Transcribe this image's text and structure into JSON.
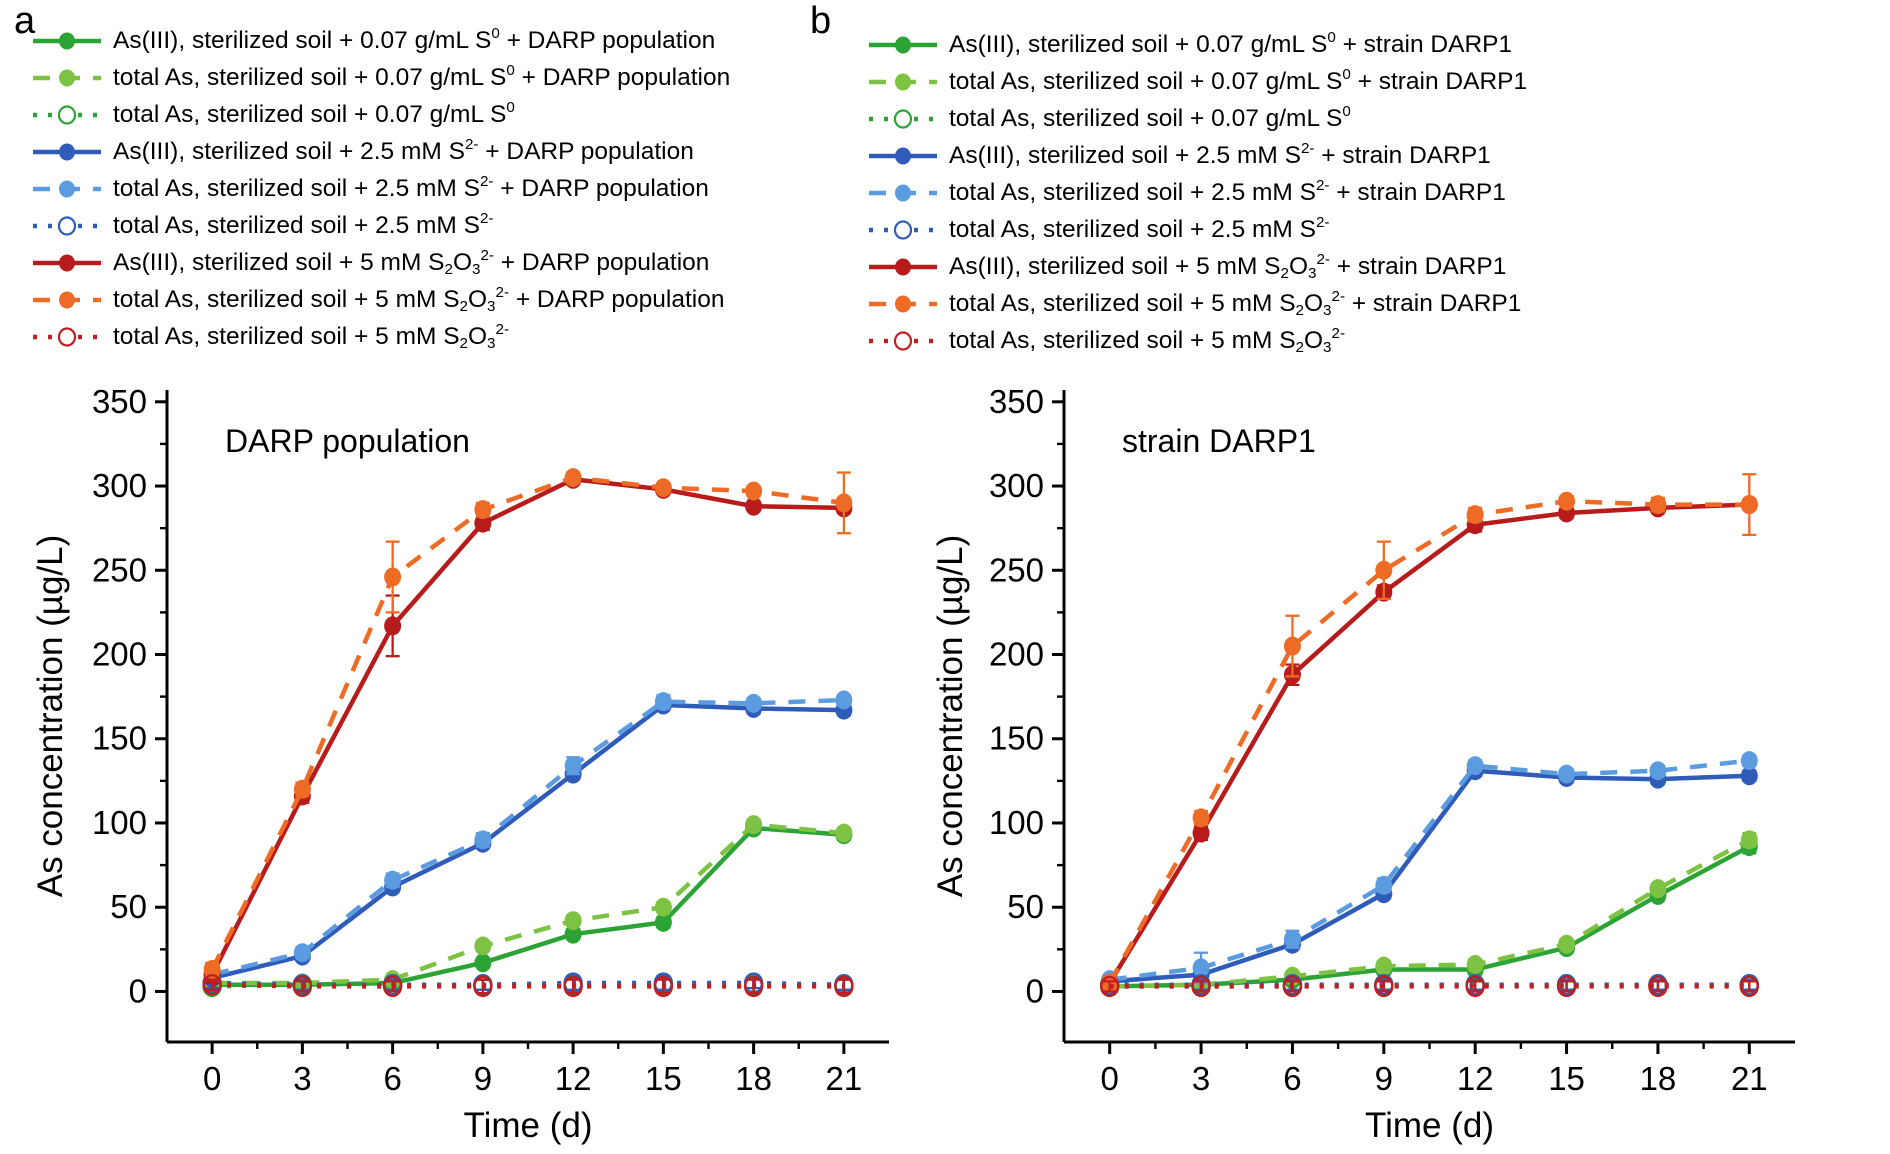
{
  "figure": {
    "panels": [
      {
        "label": "a",
        "plot_annotation": "DARP population"
      },
      {
        "label": "b",
        "plot_annotation": "strain DARP1"
      }
    ]
  },
  "colors": {
    "green": "#2ca335",
    "light_green": "#7dc242",
    "blue": "#2e5cb8",
    "light_blue": "#5b9be0",
    "dark_red": "#b71b1b",
    "orange": "#ee6b26",
    "control_red": "#c11f1f",
    "axis": "#000000"
  },
  "chart_data": [
    {
      "type": "line",
      "title": "DARP population",
      "xlabel": "Time (d)",
      "ylabel": "As concentration (µg/L)",
      "x": [
        0,
        3,
        6,
        9,
        12,
        15,
        18,
        21
      ],
      "xlim": [
        -1.5,
        22.5
      ],
      "ylim": [
        -30,
        357
      ],
      "xticks": [
        0,
        3,
        6,
        9,
        12,
        15,
        18,
        21
      ],
      "yticks": [
        0,
        50,
        100,
        150,
        200,
        250,
        300,
        350
      ],
      "x_minor_step": 1.5,
      "y_minor_step": 25,
      "grid": false,
      "legend_position": "top-left-above",
      "series": [
        {
          "name": "As(III), sterilized soil + 0.07 g/mL S{^0} + DARP population",
          "color": "#2ca335",
          "line": "solid",
          "marker": "filled",
          "values": [
            4,
            4,
            5,
            17,
            34,
            41,
            97,
            93
          ],
          "err": [
            0,
            0,
            0,
            0,
            3,
            3,
            3,
            3
          ]
        },
        {
          "name": "total As, sterilized soil + 0.07 g/mL S{^0} + DARP population",
          "color": "#7dc242",
          "line": "dash",
          "marker": "filled",
          "values": [
            5,
            5,
            7,
            27,
            42,
            50,
            99,
            94
          ],
          "err": [
            0,
            0,
            0,
            3,
            3,
            3,
            3,
            3
          ]
        },
        {
          "name": "total As, sterilized soil + 0.07 g/mL S{^0}",
          "color": "#2ca335",
          "line": "dot",
          "marker": "open",
          "values": [
            3,
            4,
            4,
            4,
            4,
            4,
            4,
            4
          ],
          "err": [
            3,
            3,
            3,
            3,
            4,
            4,
            4,
            4
          ]
        },
        {
          "name": "As(III), sterilized soil + 2.5 mM S{^2-} + DARP population",
          "color": "#2e5cb8",
          "line": "solid",
          "marker": "filled",
          "values": [
            8,
            21,
            62,
            88,
            129,
            170,
            168,
            167
          ],
          "err": [
            0,
            0,
            3,
            3,
            3,
            3,
            3,
            3
          ]
        },
        {
          "name": "total As, sterilized soil + 2.5 mM S{^2-} + DARP population",
          "color": "#5b9be0",
          "line": "dash",
          "marker": "filled",
          "values": [
            10,
            23,
            66,
            90,
            134,
            172,
            171,
            173
          ],
          "err": [
            0,
            3,
            4,
            4,
            5,
            4,
            3,
            3
          ]
        },
        {
          "name": "total As, sterilized soil + 2.5 mM S{^2-}",
          "color": "#2e5cb8",
          "line": "dot",
          "marker": "open",
          "values": [
            5,
            4,
            4,
            4,
            5,
            5,
            5,
            4
          ],
          "err": [
            3,
            3,
            3,
            3,
            4,
            4,
            3,
            3
          ]
        },
        {
          "name": "As(III), sterilized soil + 5 mM S{_2}O{_3}{^2-} + DARP population",
          "color": "#b71b1b",
          "line": "solid",
          "marker": "filled",
          "values": [
            10,
            116,
            217,
            278,
            304,
            298,
            288,
            287
          ],
          "err": [
            5,
            4,
            18,
            4,
            3,
            0,
            0,
            3
          ]
        },
        {
          "name": "total As, sterilized soil + 5 mM S{_2}O{_3}{^2-} + DARP population",
          "color": "#ee6b26",
          "line": "dash",
          "marker": "filled",
          "values": [
            13,
            120,
            246,
            286,
            305,
            299,
            297,
            290
          ],
          "err": [
            4,
            4,
            21,
            4,
            3,
            0,
            3,
            18
          ]
        },
        {
          "name": "total As, sterilized soil + 5 mM S{_2}O{_3}{^2-}",
          "color": "#c11f1f",
          "line": "dot",
          "marker": "open",
          "values": [
            4,
            3,
            3,
            3,
            3,
            3,
            3,
            3
          ],
          "err": [
            3,
            3,
            3,
            4,
            4,
            4,
            4,
            4
          ]
        }
      ]
    },
    {
      "type": "line",
      "title": "strain DARP1",
      "xlabel": "Time (d)",
      "ylabel": "As concentration (µg/L)",
      "x": [
        0,
        3,
        6,
        9,
        12,
        15,
        18,
        21
      ],
      "xlim": [
        -1.5,
        22.5
      ],
      "ylim": [
        -30,
        357
      ],
      "xticks": [
        0,
        3,
        6,
        9,
        12,
        15,
        18,
        21
      ],
      "yticks": [
        0,
        50,
        100,
        150,
        200,
        250,
        300,
        350
      ],
      "x_minor_step": 1.5,
      "y_minor_step": 25,
      "grid": false,
      "legend_position": "top-left-above",
      "series": [
        {
          "name": "As(III), sterilized soil + 0.07 g/mL S{^0} + strain DARP1",
          "color": "#2ca335",
          "line": "solid",
          "marker": "filled",
          "values": [
            3,
            4,
            7,
            13,
            13,
            26,
            57,
            86
          ],
          "err": [
            0,
            0,
            0,
            0,
            0,
            3,
            3,
            4
          ]
        },
        {
          "name": "total As, sterilized soil + 0.07 g/mL S{^0} + strain DARP1",
          "color": "#7dc242",
          "line": "dash",
          "marker": "filled",
          "values": [
            3,
            4,
            9,
            15,
            16,
            28,
            61,
            90
          ],
          "err": [
            0,
            0,
            0,
            3,
            3,
            3,
            3,
            4
          ]
        },
        {
          "name": "total As, sterilized soil + 0.07 g/mL S{^0}",
          "color": "#2ca335",
          "line": "dot",
          "marker": "open",
          "values": [
            3,
            3,
            3,
            4,
            4,
            4,
            4,
            4
          ],
          "err": [
            3,
            3,
            3,
            3,
            3,
            3,
            3,
            3
          ]
        },
        {
          "name": "As(III), sterilized soil + 2.5 mM S{^2-} + strain DARP1",
          "color": "#2e5cb8",
          "line": "solid",
          "marker": "filled",
          "values": [
            6,
            10,
            28,
            58,
            131,
            127,
            126,
            128
          ],
          "err": [
            0,
            0,
            3,
            3,
            3,
            3,
            3,
            3
          ]
        },
        {
          "name": "total  As, sterilized soil + 2.5 mM S{^2-} + strain DARP1",
          "color": "#5b9be0",
          "line": "dash",
          "marker": "filled",
          "values": [
            7,
            14,
            31,
            63,
            134,
            129,
            131,
            137
          ],
          "err": [
            0,
            9,
            5,
            4,
            3,
            3,
            3,
            3
          ]
        },
        {
          "name": "total As, sterilized soil + 2.5 mM S{^2-}",
          "color": "#2e5cb8",
          "line": "dot",
          "marker": "open",
          "values": [
            4,
            4,
            4,
            4,
            4,
            4,
            4,
            4
          ],
          "err": [
            3,
            3,
            3,
            3,
            3,
            3,
            3,
            3
          ]
        },
        {
          "name": "As(III), sterilized soil + 5 mM S{_2}O{_3}{^2-} + strain DARP1",
          "color": "#b71b1b",
          "line": "solid",
          "marker": "filled",
          "values": [
            5,
            94,
            188,
            237,
            277,
            284,
            287,
            289
          ],
          "err": [
            3,
            4,
            6,
            4,
            4,
            3,
            3,
            3
          ]
        },
        {
          "name": "total As, sterilized soil + 5 mM S{_2}O{_3}{^2-} + strain DARP1",
          "color": "#ee6b26",
          "line": "dash",
          "marker": "filled",
          "values": [
            5,
            103,
            205,
            250,
            283,
            291,
            289,
            289
          ],
          "err": [
            3,
            4,
            18,
            17,
            4,
            3,
            4,
            18
          ]
        },
        {
          "name": "total As, sterilized soil + 5 mM S{_2}O{_3}{^2-}",
          "color": "#c11f1f",
          "line": "dot",
          "marker": "open",
          "values": [
            3,
            3,
            3,
            3,
            3,
            3,
            3,
            3
          ],
          "err": [
            3,
            3,
            3,
            3,
            3,
            3,
            3,
            3
          ]
        }
      ]
    }
  ]
}
